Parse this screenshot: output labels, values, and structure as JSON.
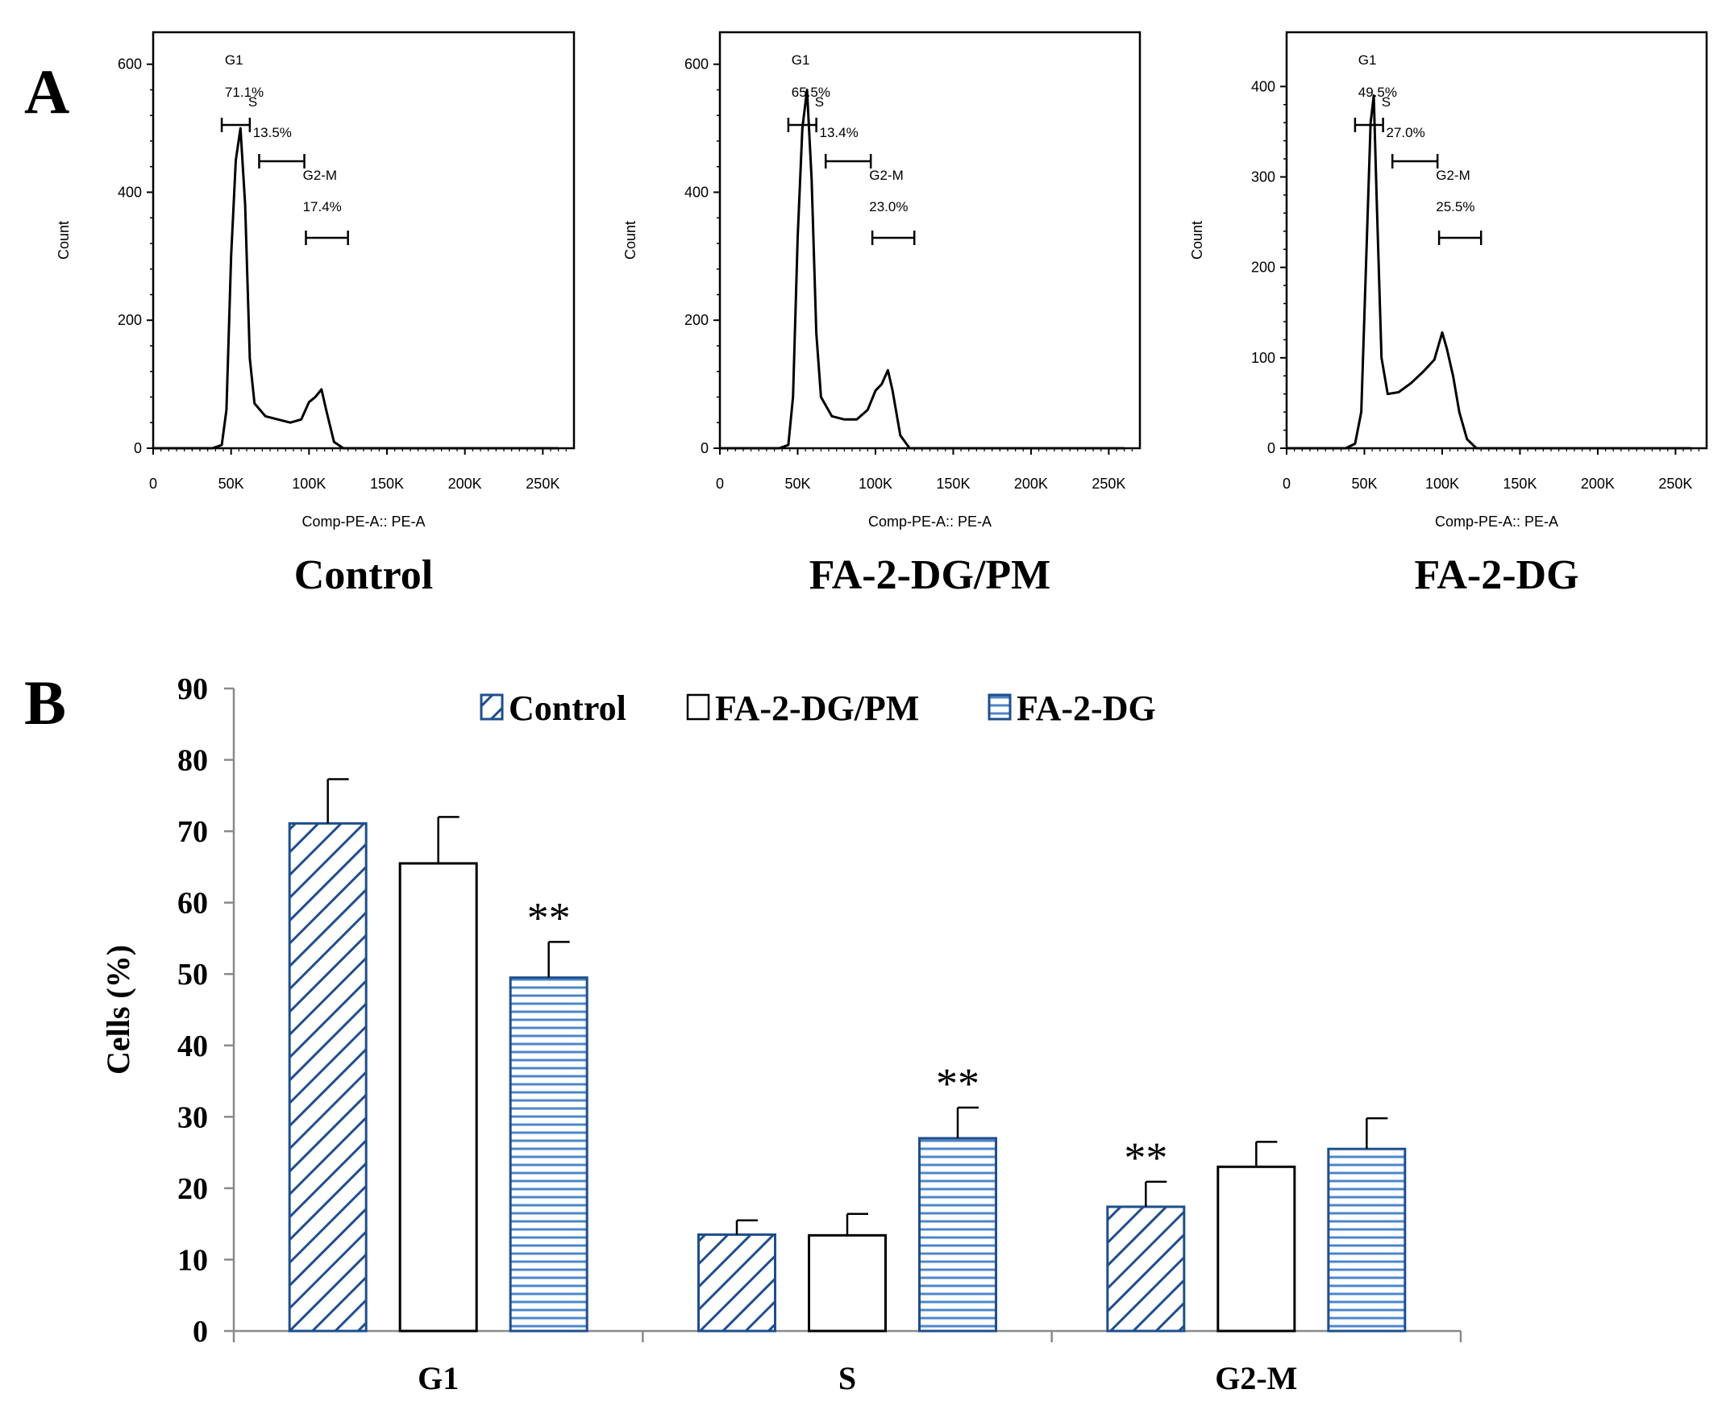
{
  "panel_a": {
    "letter": "A",
    "x_axis_label": "Comp-PE-A:: PE-A",
    "y_axis_label": "Count",
    "x_ticks": [
      "0",
      "50K",
      "100K",
      "150K",
      "200K",
      "250K"
    ],
    "x_tick_values": [
      0,
      50000,
      100000,
      150000,
      200000,
      250000
    ],
    "histograms": [
      {
        "title": "Control",
        "ymax": 650,
        "y_ticks": [
          0,
          200,
          400,
          600
        ],
        "gates": {
          "g1_label": "G1",
          "g1_value": "71.1%",
          "s_label": "S",
          "s_value": "13.5%",
          "g2m_label": "G2-M",
          "g2m_value": "17.4%"
        },
        "curve": [
          [
            0,
            0
          ],
          [
            38000,
            0
          ],
          [
            44000,
            5
          ],
          [
            47000,
            60
          ],
          [
            50000,
            300
          ],
          [
            53000,
            450
          ],
          [
            56000,
            500
          ],
          [
            59000,
            380
          ],
          [
            62000,
            140
          ],
          [
            65000,
            70
          ],
          [
            72000,
            50
          ],
          [
            80000,
            45
          ],
          [
            88000,
            40
          ],
          [
            95000,
            45
          ],
          [
            100000,
            72
          ],
          [
            104000,
            80
          ],
          [
            108000,
            92
          ],
          [
            111000,
            60
          ],
          [
            116000,
            10
          ],
          [
            122000,
            0
          ],
          [
            260000,
            0
          ]
        ]
      },
      {
        "title": "FA-2-DG/PM",
        "ymax": 650,
        "y_ticks": [
          0,
          200,
          400,
          600
        ],
        "gates": {
          "g1_label": "G1",
          "g1_value": "65.5%",
          "s_label": "S",
          "s_value": "13.4%",
          "g2m_label": "G2-M",
          "g2m_value": "23.0%"
        },
        "curve": [
          [
            0,
            0
          ],
          [
            38000,
            0
          ],
          [
            44000,
            5
          ],
          [
            47000,
            80
          ],
          [
            50000,
            330
          ],
          [
            53000,
            500
          ],
          [
            56000,
            560
          ],
          [
            59000,
            420
          ],
          [
            62000,
            180
          ],
          [
            65000,
            80
          ],
          [
            72000,
            50
          ],
          [
            80000,
            45
          ],
          [
            88000,
            45
          ],
          [
            95000,
            60
          ],
          [
            100000,
            90
          ],
          [
            104000,
            100
          ],
          [
            108000,
            122
          ],
          [
            111000,
            90
          ],
          [
            116000,
            20
          ],
          [
            122000,
            0
          ],
          [
            260000,
            0
          ]
        ]
      },
      {
        "title": "FA-2-DG",
        "ymax": 460,
        "y_ticks": [
          0,
          100,
          200,
          300,
          400
        ],
        "gates": {
          "g1_label": "G1",
          "g1_value": "49.5%",
          "s_label": "S",
          "s_value": "27.0%",
          "g2m_label": "G2-M",
          "g2m_value": "25.5%"
        },
        "curve": [
          [
            0,
            0
          ],
          [
            38000,
            0
          ],
          [
            44000,
            5
          ],
          [
            48000,
            40
          ],
          [
            51000,
            200
          ],
          [
            54000,
            360
          ],
          [
            56000,
            390
          ],
          [
            58000,
            270
          ],
          [
            61000,
            100
          ],
          [
            65000,
            60
          ],
          [
            72000,
            62
          ],
          [
            80000,
            72
          ],
          [
            88000,
            85
          ],
          [
            95000,
            98
          ],
          [
            100000,
            128
          ],
          [
            103000,
            110
          ],
          [
            107000,
            80
          ],
          [
            111000,
            40
          ],
          [
            116000,
            10
          ],
          [
            122000,
            0
          ],
          [
            260000,
            0
          ]
        ]
      }
    ]
  },
  "panel_b": {
    "letter": "B",
    "legend": [
      "Control",
      "FA-2-DG/PM",
      "FA-2-DG"
    ],
    "significance_mark": "**"
  },
  "chart_data": {
    "type": "bar",
    "title": "",
    "xlabel": "",
    "ylabel": "Cells (%)",
    "ylim": [
      0,
      90
    ],
    "y_ticks": [
      0,
      10,
      20,
      30,
      40,
      50,
      60,
      70,
      80,
      90
    ],
    "categories": [
      "G1",
      "S",
      "G2-M"
    ],
    "series": [
      {
        "name": "Control",
        "pattern": "diagonal",
        "values": [
          71.1,
          13.5,
          17.4
        ],
        "errors": [
          6.2,
          2.0,
          3.5
        ],
        "significant": [
          false,
          false,
          true
        ]
      },
      {
        "name": "FA-2-DG/PM",
        "pattern": "none",
        "values": [
          65.5,
          13.4,
          23.0
        ],
        "errors": [
          6.5,
          3.0,
          3.5
        ],
        "significant": [
          false,
          false,
          false
        ]
      },
      {
        "name": "FA-2-DG",
        "pattern": "horizontal",
        "values": [
          49.5,
          27.0,
          25.5
        ],
        "errors": [
          5.0,
          4.3,
          4.3
        ],
        "significant": [
          true,
          true,
          false
        ]
      }
    ],
    "colors": {
      "bar_border": "#1f4e8c",
      "diag_hatch": "#1f4e8c",
      "horiz_hatch": "#4d86c8",
      "plain_fill": "#ffffff",
      "axis": "#8a8a8a"
    }
  }
}
